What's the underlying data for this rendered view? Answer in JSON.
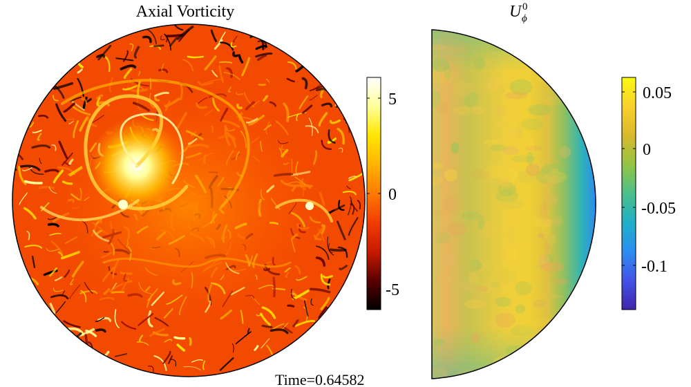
{
  "left_panel": {
    "title": "Axial Vorticity",
    "colorbar": {
      "colormap": "hot",
      "stops": [
        "#000000",
        "#5a0000",
        "#c81a00",
        "#f23c00",
        "#ff7a00",
        "#ffb400",
        "#ffe600",
        "#ffff9a",
        "#ffffff"
      ],
      "ticks": [
        "5",
        "0",
        "-5"
      ],
      "tick_values": [
        5,
        0,
        -5
      ],
      "range": [
        -6,
        6
      ]
    }
  },
  "right_panel": {
    "title_main": "U",
    "title_sub": "ϕ",
    "title_sup": "0",
    "colorbar": {
      "colormap": "parula",
      "stops": [
        "#3e26a8",
        "#4352e8",
        "#2c8ef0",
        "#1fb0c8",
        "#4bbf8a",
        "#94c444",
        "#d9b92c",
        "#f9d02c",
        "#f9fb0e"
      ],
      "ticks": [
        "0.05",
        "0",
        "-0.05",
        "-0.1"
      ],
      "tick_values": [
        0.05,
        0,
        -0.05,
        -0.1
      ],
      "range": [
        -0.14,
        0.065
      ]
    }
  },
  "footer": {
    "time_label": "Time=0.64582"
  },
  "colors": {
    "vorticity_base": "#f24a00",
    "field_base": "#e6c93a",
    "outline": "#000000"
  }
}
